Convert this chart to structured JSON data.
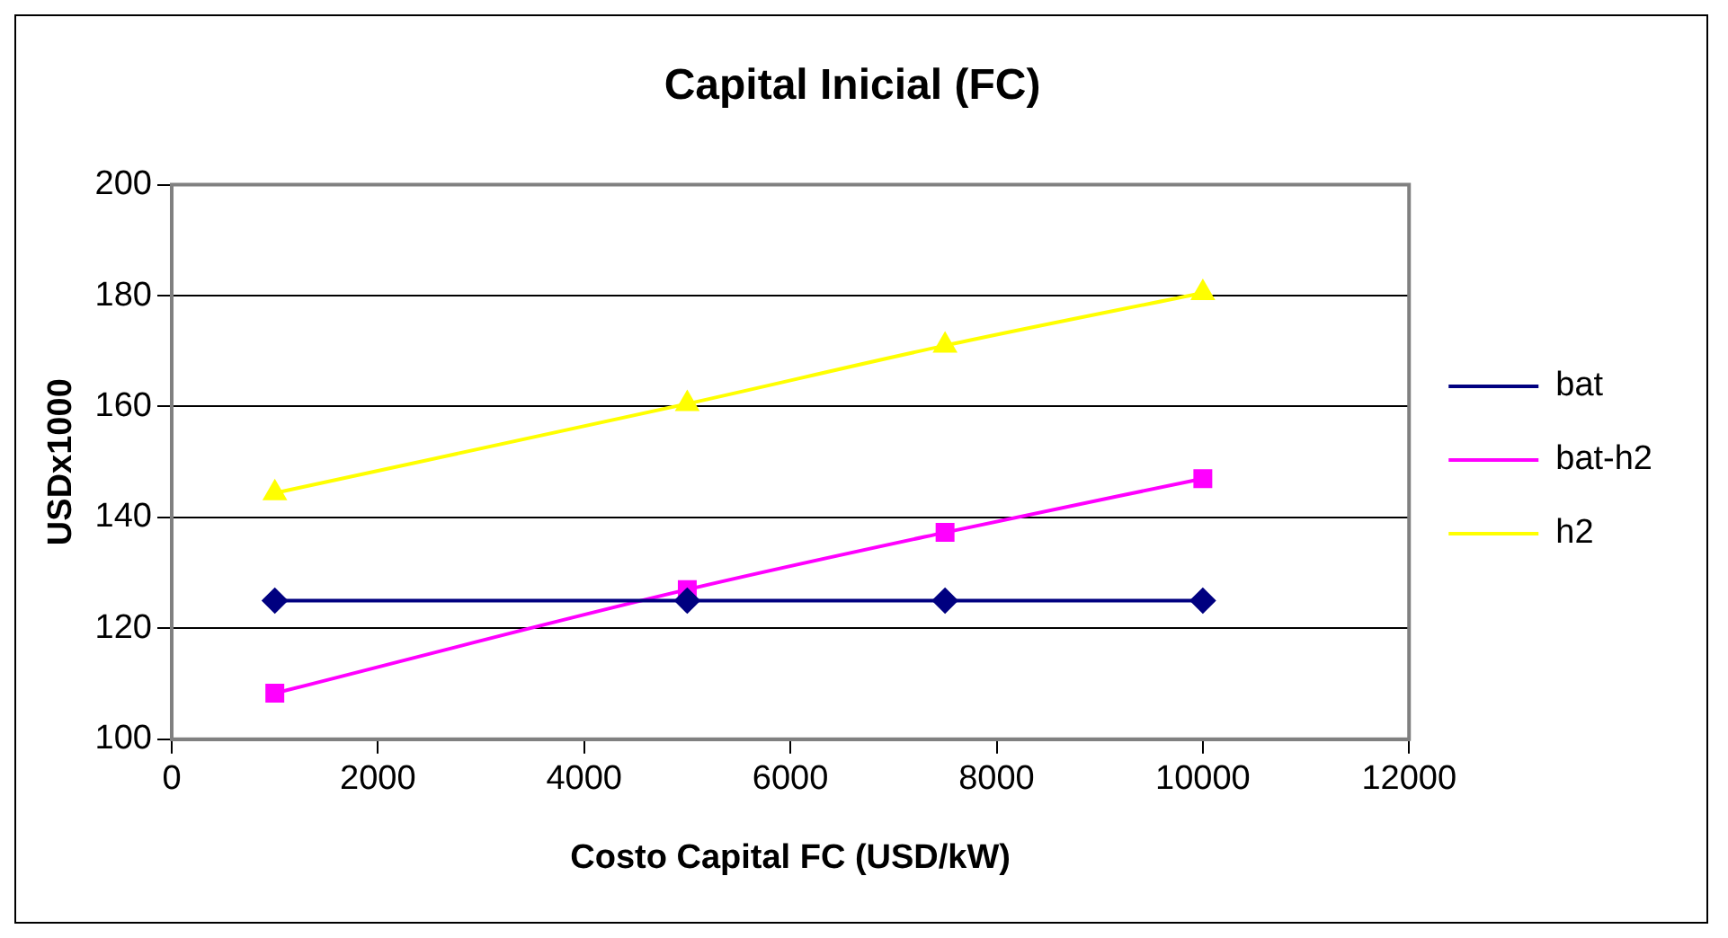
{
  "chart_data": {
    "type": "line",
    "title": "Capital Inicial (FC)",
    "xlabel": "Costo Capital FC (USD/kW)",
    "ylabel": "USDx1000",
    "x": [
      1000,
      5000,
      7500,
      10000
    ],
    "series": [
      {
        "name": "bat",
        "color": "#000080",
        "marker": "diamond",
        "values": [
          125,
          125,
          125,
          125
        ]
      },
      {
        "name": "bat-h2",
        "color": "#ff00ff",
        "marker": "square",
        "values": [
          108.3,
          127,
          137.3,
          147
        ]
      },
      {
        "name": "h2",
        "color": "#ffff00",
        "marker": "triangle",
        "values": [
          144.4,
          160.5,
          171,
          180.5
        ]
      }
    ],
    "xlim": [
      0,
      12000
    ],
    "xticks": [
      0,
      2000,
      4000,
      6000,
      8000,
      10000,
      12000
    ],
    "ylim": [
      100,
      200
    ],
    "yticks": [
      100,
      120,
      140,
      160,
      180,
      200
    ],
    "grid": "y",
    "legend": "right",
    "line_style": "solid"
  }
}
